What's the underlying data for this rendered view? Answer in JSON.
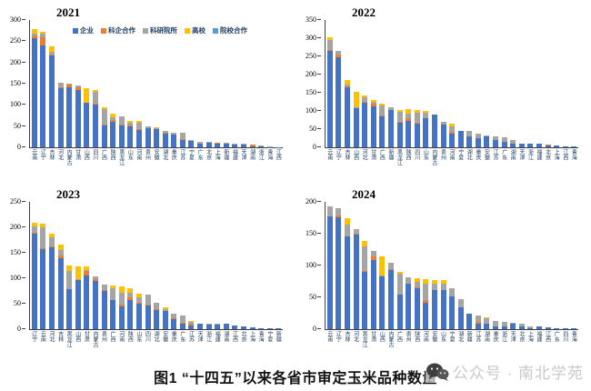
{
  "page": {
    "title": "图1 “十四五”以来各省市审定玉米品种数量",
    "watermark": "公众号 · 南北学苑"
  },
  "legend": {
    "items": [
      {
        "key": "enterprise",
        "label": "企业",
        "color": "#4472C4"
      },
      {
        "key": "sci-enterprise-coop",
        "label": "科企合作",
        "color": "#ED7D31"
      },
      {
        "key": "research-institute",
        "label": "科研院所",
        "color": "#A5A5A5"
      },
      {
        "key": "university",
        "label": "高校",
        "color": "#FFC000"
      },
      {
        "key": "institution-coop",
        "label": "院校合作",
        "color": "#5B9BD5"
      }
    ]
  },
  "chart_data": [
    {
      "type": "bar",
      "stacked": true,
      "title": "2021",
      "ylim": [
        0,
        300
      ],
      "yticks": [
        0,
        50,
        100,
        150,
        200,
        250,
        300
      ],
      "legend_position": "top-inside",
      "grid": false,
      "categories": [
        "云南",
        "辽宁",
        "吉林",
        "河北",
        "内蒙古",
        "甘肃",
        "山西",
        "四川",
        "广西",
        "陕西",
        "黑龙江",
        "山东",
        "河南",
        "贵州",
        "安徽",
        "湖北",
        "重庆",
        "江苏",
        "宁夏",
        "广东",
        "北京",
        "上海",
        "新疆",
        "福建",
        "天津",
        "湖南",
        "浙江",
        "青海",
        "江西"
      ],
      "series": [
        {
          "key": "enterprise",
          "name": "企业",
          "color": "#4472C4",
          "values": [
            258,
            240,
            216,
            140,
            142,
            134,
            104,
            100,
            52,
            61,
            51,
            50,
            41,
            45,
            42,
            32,
            30,
            18,
            16,
            8,
            11,
            8,
            9,
            7,
            7,
            3,
            3,
            1,
            1
          ]
        },
        {
          "key": "sci-enterprise-coop",
          "name": "科企合作",
          "color": "#ED7D31",
          "values": [
            5,
            20,
            2,
            2,
            5,
            8,
            0,
            2,
            2,
            3,
            2,
            1,
            2,
            1,
            1,
            3,
            1,
            1,
            0,
            1,
            0,
            2,
            0,
            0,
            0,
            3,
            0,
            0,
            0
          ]
        },
        {
          "key": "research-institute",
          "name": "科研院所",
          "color": "#A5A5A5",
          "values": [
            5,
            8,
            8,
            10,
            3,
            3,
            1,
            28,
            36,
            6,
            20,
            6,
            14,
            3,
            3,
            3,
            3,
            16,
            1,
            4,
            1,
            0,
            1,
            1,
            1,
            0,
            2,
            1,
            0
          ]
        },
        {
          "key": "university",
          "name": "高校",
          "color": "#FFC000",
          "values": [
            10,
            4,
            11,
            0,
            0,
            0,
            34,
            6,
            5,
            9,
            0,
            6,
            6,
            0,
            2,
            0,
            0,
            0,
            0,
            0,
            0,
            0,
            0,
            0,
            0,
            0,
            0,
            0,
            0
          ]
        },
        {
          "key": "institution-coop",
          "name": "院校合作",
          "color": "#5B9BD5",
          "values": [
            0,
            0,
            0,
            0,
            0,
            0,
            0,
            0,
            0,
            0,
            0,
            0,
            0,
            0,
            0,
            0,
            0,
            0,
            0,
            0,
            0,
            0,
            0,
            0,
            0,
            0,
            0,
            0,
            0
          ]
        }
      ]
    },
    {
      "type": "bar",
      "stacked": true,
      "title": "2022",
      "ylim": [
        0,
        350
      ],
      "yticks": [
        0,
        50,
        100,
        150,
        200,
        250,
        300,
        350
      ],
      "grid": false,
      "categories": [
        "云南",
        "辽宁",
        "吉林",
        "山西",
        "河北",
        "甘肃",
        "广西",
        "新疆",
        "黑龙江",
        "陕西",
        "四川",
        "山东",
        "内蒙古",
        "贵州",
        "河南",
        "宁夏",
        "湖北",
        "重庆",
        "安徽",
        "江苏",
        "广东",
        "湖南",
        "天津",
        "浙江",
        "福建",
        "北京",
        "上海",
        "江西",
        "青海"
      ],
      "series": [
        {
          "key": "enterprise",
          "name": "企业",
          "color": "#4472C4",
          "values": [
            265,
            248,
            165,
            108,
            122,
            113,
            85,
            103,
            68,
            72,
            65,
            80,
            90,
            62,
            38,
            45,
            30,
            25,
            30,
            20,
            15,
            10,
            10,
            9,
            9,
            6,
            4,
            3,
            3
          ]
        },
        {
          "key": "sci-enterprise-coop",
          "name": "科企合作",
          "color": "#ED7D31",
          "values": [
            2,
            7,
            2,
            0,
            2,
            6,
            2,
            0,
            1,
            8,
            2,
            1,
            0,
            1,
            4,
            0,
            1,
            1,
            0,
            1,
            1,
            1,
            0,
            0,
            0,
            2,
            0,
            0,
            0
          ]
        },
        {
          "key": "research-institute",
          "name": "科研院所",
          "color": "#A5A5A5",
          "values": [
            28,
            11,
            6,
            2,
            14,
            6,
            28,
            7,
            29,
            12,
            28,
            14,
            1,
            7,
            15,
            1,
            13,
            11,
            3,
            9,
            11,
            9,
            0,
            1,
            1,
            0,
            1,
            0,
            0
          ]
        },
        {
          "key": "university",
          "name": "高校",
          "color": "#FFC000",
          "values": [
            7,
            0,
            12,
            42,
            5,
            5,
            5,
            0,
            5,
            13,
            7,
            6,
            0,
            0,
            7,
            0,
            0,
            0,
            0,
            0,
            0,
            0,
            0,
            0,
            0,
            0,
            0,
            0,
            0
          ]
        },
        {
          "key": "institution-coop",
          "name": "院校合作",
          "color": "#5B9BD5",
          "values": [
            0,
            0,
            0,
            0,
            0,
            0,
            0,
            0,
            0,
            0,
            0,
            0,
            0,
            0,
            0,
            0,
            0,
            0,
            0,
            0,
            0,
            0,
            0,
            0,
            0,
            0,
            0,
            0,
            0
          ]
        }
      ]
    },
    {
      "type": "bar",
      "stacked": true,
      "title": "2023",
      "ylim": [
        0,
        250
      ],
      "yticks": [
        0,
        50,
        100,
        150,
        200,
        250
      ],
      "grid": false,
      "categories": [
        "辽宁",
        "云南",
        "河北",
        "吉林",
        "黑龙江",
        "山西",
        "甘肃",
        "内蒙古",
        "贵州",
        "广西",
        "河南",
        "陕西",
        "山东",
        "四川",
        "湖北",
        "安徽",
        "重庆",
        "广东",
        "江苏",
        "天津",
        "浙江",
        "福建",
        "湖南",
        "江西",
        "北京",
        "上海",
        "青海",
        "宁夏",
        "新疆"
      ],
      "series": [
        {
          "key": "enterprise",
          "name": "企业",
          "color": "#4472C4",
          "values": [
            187,
            157,
            161,
            139,
            78,
            97,
            106,
            95,
            75,
            57,
            44,
            57,
            50,
            47,
            38,
            35,
            20,
            10,
            8,
            11,
            9,
            9,
            10,
            7,
            5,
            3,
            1,
            1,
            1
          ]
        },
        {
          "key": "sci-enterprise-coop",
          "name": "科企合作",
          "color": "#ED7D31",
          "values": [
            2,
            2,
            2,
            5,
            1,
            0,
            9,
            4,
            1,
            1,
            4,
            5,
            1,
            1,
            2,
            0,
            2,
            2,
            2,
            0,
            0,
            0,
            0,
            0,
            0,
            0,
            1,
            0,
            0
          ]
        },
        {
          "key": "research-institute",
          "name": "科研院所",
          "color": "#A5A5A5",
          "values": [
            13,
            41,
            17,
            11,
            36,
            2,
            2,
            5,
            12,
            22,
            24,
            10,
            11,
            20,
            12,
            5,
            8,
            14,
            5,
            0,
            1,
            1,
            0,
            0,
            1,
            0,
            0,
            0,
            0
          ]
        },
        {
          "key": "university",
          "name": "高校",
          "color": "#FFC000",
          "values": [
            7,
            8,
            8,
            11,
            10,
            25,
            7,
            0,
            0,
            6,
            12,
            9,
            8,
            0,
            0,
            3,
            0,
            0,
            2,
            0,
            0,
            0,
            0,
            0,
            0,
            0,
            0,
            0,
            0
          ]
        },
        {
          "key": "institution-coop",
          "name": "院校合作",
          "color": "#5B9BD5",
          "values": [
            0,
            0,
            0,
            0,
            0,
            0,
            0,
            0,
            0,
            0,
            0,
            0,
            0,
            0,
            0,
            0,
            0,
            0,
            0,
            0,
            0,
            0,
            0,
            0,
            0,
            0,
            0,
            0,
            0
          ]
        }
      ]
    },
    {
      "type": "bar",
      "stacked": true,
      "title": "2024",
      "ylim": [
        0,
        200
      ],
      "yticks": [
        0,
        50,
        100,
        150,
        200
      ],
      "grid": false,
      "categories": [
        "云南",
        "辽宁",
        "吉林",
        "河北",
        "黑龙江",
        "甘肃",
        "山西",
        "内蒙古",
        "广西",
        "贵州",
        "陕西",
        "河南",
        "安徽",
        "山东",
        "宁夏",
        "湖北",
        "新疆",
        "江苏",
        "湖南",
        "重庆",
        "浙江",
        "天津",
        "北京",
        "上海",
        "福建",
        "江西",
        "广东",
        "四川",
        "青海"
      ],
      "series": [
        {
          "key": "enterprise",
          "name": "企业",
          "color": "#4472C4",
          "values": [
            177,
            176,
            146,
            149,
            90,
            108,
            83,
            93,
            55,
            71,
            65,
            41,
            62,
            61,
            52,
            34,
            24,
            9,
            8,
            4,
            5,
            8,
            5,
            2,
            4,
            3,
            1,
            1,
            1
          ]
        },
        {
          "key": "sci-enterprise-coop",
          "name": "科企合作",
          "color": "#ED7D31",
          "values": [
            0,
            3,
            0,
            1,
            1,
            7,
            0,
            1,
            0,
            1,
            1,
            5,
            0,
            1,
            0,
            0,
            0,
            2,
            0,
            1,
            0,
            0,
            0,
            0,
            0,
            0,
            0,
            0,
            0
          ]
        },
        {
          "key": "research-institute",
          "name": "科研院所",
          "color": "#A5A5A5",
          "values": [
            16,
            11,
            19,
            7,
            39,
            8,
            1,
            10,
            32,
            9,
            9,
            26,
            10,
            10,
            12,
            13,
            0,
            10,
            9,
            8,
            6,
            2,
            3,
            2,
            0,
            0,
            0,
            0,
            0
          ]
        },
        {
          "key": "university",
          "name": "高校",
          "color": "#FFC000",
          "values": [
            0,
            0,
            9,
            0,
            9,
            0,
            30,
            0,
            3,
            0,
            5,
            7,
            5,
            5,
            0,
            0,
            0,
            0,
            1,
            0,
            0,
            0,
            0,
            0,
            0,
            0,
            0,
            0,
            0
          ]
        },
        {
          "key": "institution-coop",
          "name": "院校合作",
          "color": "#5B9BD5",
          "values": [
            0,
            0,
            0,
            0,
            0,
            0,
            0,
            0,
            0,
            0,
            0,
            0,
            0,
            0,
            0,
            0,
            0,
            0,
            0,
            0,
            0,
            0,
            0,
            0,
            0,
            0,
            0,
            0,
            0
          ]
        }
      ]
    }
  ]
}
